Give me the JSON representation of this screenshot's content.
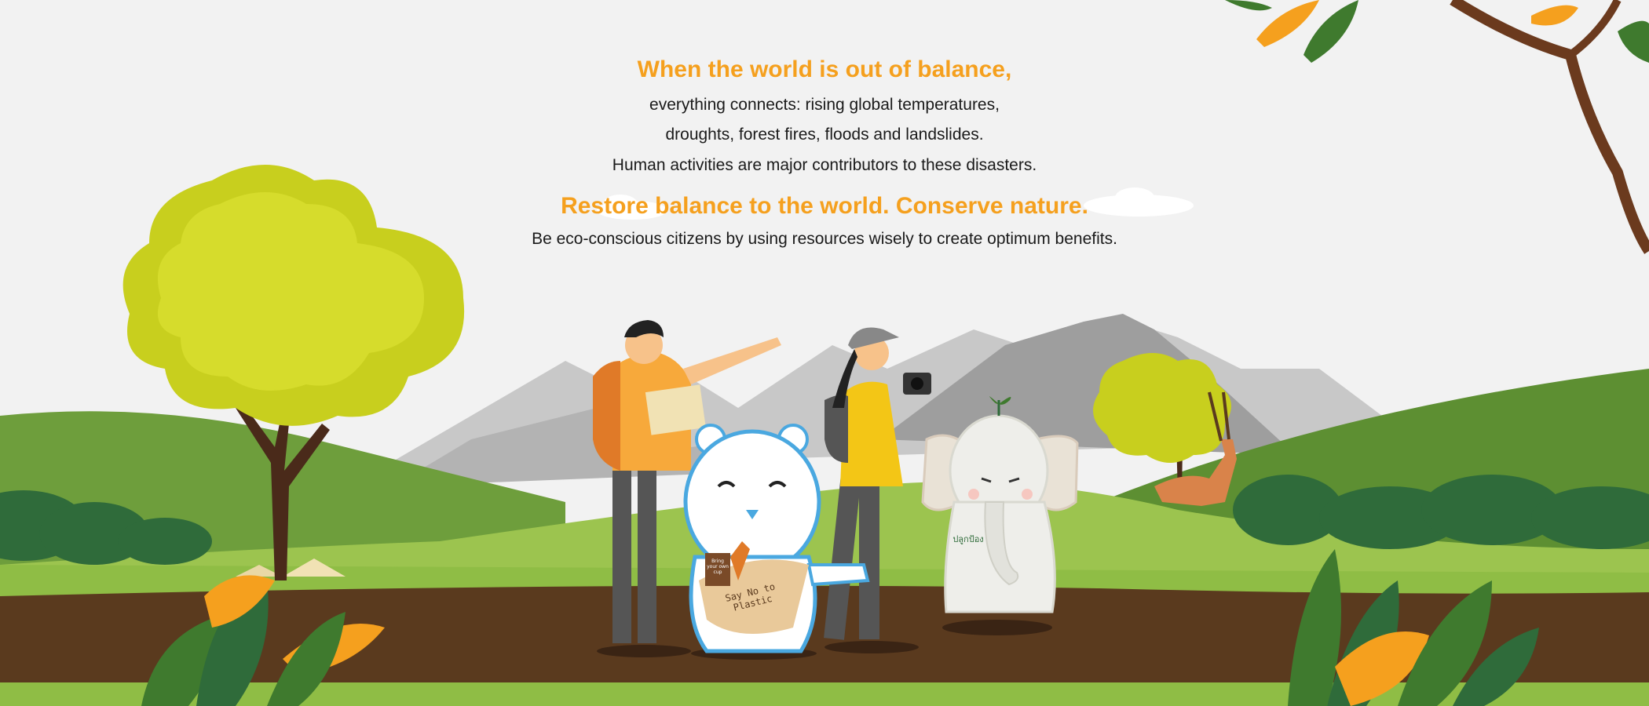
{
  "headline": {
    "title": "When the world is out of balance,",
    "lines": [
      "everything connects: rising global temperatures,",
      "droughts, forest fires, floods and landslides.",
      "Human activities are major contributors to these disasters."
    ]
  },
  "call_to_action": {
    "title": "Restore balance to the world. Conserve nature.",
    "line": "Be eco-conscious citizens by using resources wisely to create optimum benefits."
  },
  "illustration": {
    "bear_bag_text": "Say No to Plastic",
    "cup_text": "Bring your own cup",
    "elephant_logo_text": "ปลูกป้อง"
  },
  "colors": {
    "accent": "#f5a01e",
    "text": "#1a1a1a",
    "background": "#f2f2f2",
    "grass": "#8fbd45",
    "soil": "#5a3a1e",
    "mountain": "#9a9a9a"
  }
}
